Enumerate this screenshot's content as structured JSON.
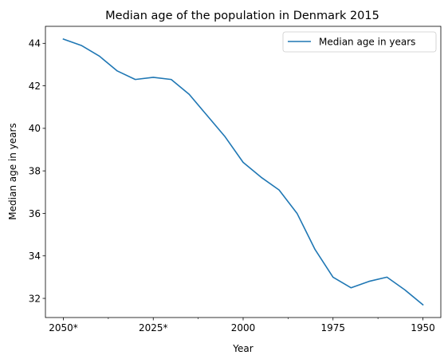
{
  "chart_data": {
    "type": "line",
    "title": "Median age of the population in Denmark 2015",
    "xlabel": "Year",
    "ylabel": "Median age in years",
    "x": [
      "2050*",
      "2045*",
      "2040*",
      "2035*",
      "2030*",
      "2025*",
      "2020*",
      "2015",
      "2010",
      "2005",
      "2000",
      "1995",
      "1990",
      "1985",
      "1980",
      "1975",
      "1970",
      "1965",
      "1960",
      "1955",
      "1950"
    ],
    "x_tick_labels": [
      "2050*",
      "2025*",
      "2000",
      "1975",
      "1950"
    ],
    "series": [
      {
        "name": "Median age in years",
        "color": "#1f77b4",
        "values": [
          44.2,
          43.9,
          43.4,
          42.7,
          42.3,
          42.4,
          42.3,
          41.6,
          40.6,
          39.6,
          38.4,
          37.7,
          37.1,
          36.0,
          34.3,
          33.0,
          32.5,
          32.8,
          33.0,
          32.4,
          31.7
        ]
      }
    ],
    "yticks": [
      32,
      34,
      36,
      38,
      40,
      42,
      44
    ],
    "ylim": [
      31.1,
      44.8
    ],
    "legend": "top-right",
    "grid": false
  }
}
